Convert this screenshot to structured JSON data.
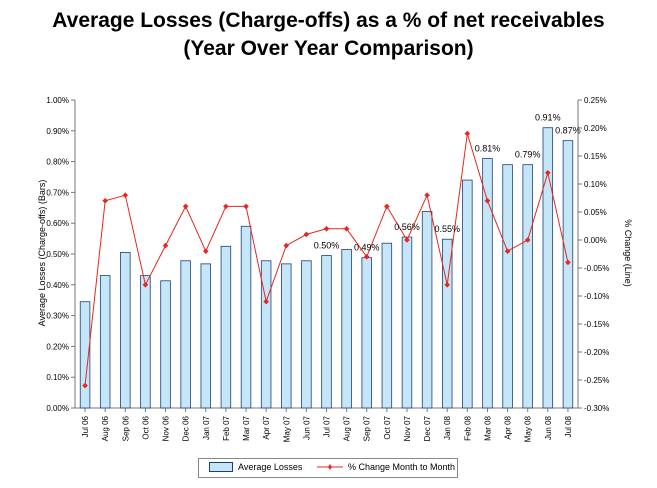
{
  "title_line1": "Average Losses (Charge-offs) as a % of net receivables",
  "title_line2": "(Year Over Year Comparison)",
  "colors": {
    "bar_fill": "#c5e6f6",
    "bar_stroke": "#1f3f7a",
    "line": "#e8261f"
  },
  "chart_data": {
    "type": "bar",
    "title": "Average Losses (Charge-offs) as a % of net receivables (Year Over Year Comparison)",
    "categories": [
      "Jul 06",
      "Aug 06",
      "Sep 06",
      "Oct 06",
      "Nov 06",
      "Dec 06",
      "Jan 07",
      "Feb 07",
      "Mar 07",
      "Apr 07",
      "May 07",
      "Jun 07",
      "Jul 07",
      "Aug 07",
      "Sep 07",
      "Oct 07",
      "Nov 07",
      "Dec 07",
      "Jan 08",
      "Feb 08",
      "Mar 08",
      "Apr 08",
      "May 08",
      "Jun 08",
      "Jul 08"
    ],
    "series": [
      {
        "name": "Average Losses",
        "type": "bar",
        "axis": "left",
        "values": [
          0.345,
          0.43,
          0.505,
          0.43,
          0.413,
          0.478,
          0.468,
          0.525,
          0.59,
          0.478,
          0.468,
          0.478,
          0.495,
          0.515,
          0.488,
          0.535,
          0.555,
          0.638,
          0.548,
          0.74,
          0.81,
          0.79,
          0.79,
          0.91,
          0.868
        ]
      },
      {
        "name": "% Change Month to Month",
        "type": "line",
        "axis": "right",
        "values": [
          -0.26,
          0.07,
          0.08,
          -0.08,
          -0.01,
          0.06,
          -0.02,
          0.06,
          0.06,
          -0.11,
          -0.01,
          0.01,
          0.02,
          0.02,
          -0.03,
          0.06,
          0.0,
          0.08,
          -0.08,
          0.19,
          0.07,
          -0.02,
          0.0,
          0.12,
          -0.04
        ]
      }
    ],
    "data_labels": [
      {
        "index": 12,
        "text": "0.50%"
      },
      {
        "index": 14,
        "text": "0.49%"
      },
      {
        "index": 16,
        "text": "0.56%"
      },
      {
        "index": 18,
        "text": "0.55%"
      },
      {
        "index": 20,
        "text": "0.81%"
      },
      {
        "index": 22,
        "text": "0.79%"
      },
      {
        "index": 23,
        "text": "0.91%"
      },
      {
        "index": 24,
        "text": "0.87%"
      }
    ],
    "ylabel": "Average Losses (Charge-offs) (Bars)",
    "y2label": "% Change (Line)",
    "ylim": [
      0,
      1.0
    ],
    "y2lim": [
      -0.3,
      0.25
    ],
    "yticks": [
      "0.00%",
      "0.10%",
      "0.20%",
      "0.30%",
      "0.40%",
      "0.50%",
      "0.60%",
      "0.70%",
      "0.80%",
      "0.90%",
      "1.00%"
    ],
    "y2ticks": [
      "-0.30%",
      "-0.25%",
      "-0.20%",
      "-0.15%",
      "-0.10%",
      "-0.05%",
      "0.00%",
      "0.05%",
      "0.10%",
      "0.15%",
      "0.20%",
      "0.25%"
    ],
    "grid": false,
    "legend": "bottom"
  }
}
